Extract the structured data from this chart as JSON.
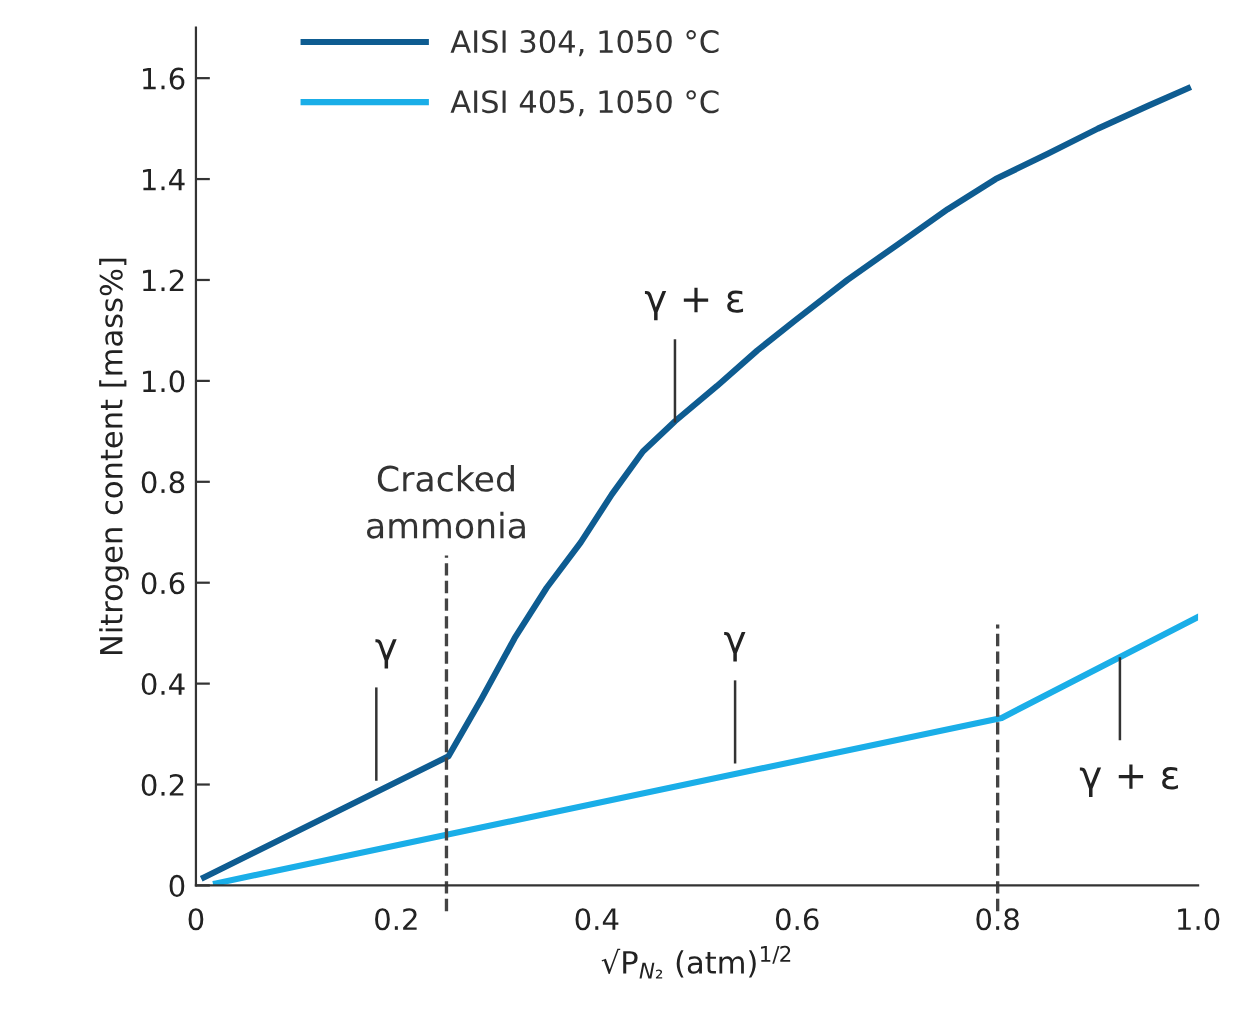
{
  "chart_data": {
    "type": "line",
    "xlabel": "√P$_{N₂}$ (atm)$^{1/2}$",
    "ylabel": "Nitrogen content [mass%]",
    "series": [
      {
        "name": "AISI 304, 1050 °C",
        "color": "#0e5c91",
        "x": [
          0.008,
          0.252,
          0.285,
          0.318,
          0.35,
          0.384,
          0.415,
          0.446,
          0.478,
          0.52,
          0.56,
          0.598,
          0.65,
          0.7,
          0.75,
          0.798,
          0.85,
          0.9,
          0.95,
          0.99
        ],
        "values": [
          0.016,
          0.256,
          0.37,
          0.49,
          0.59,
          0.68,
          0.775,
          0.86,
          0.92,
          0.99,
          1.06,
          1.12,
          1.2,
          1.27,
          1.34,
          1.4,
          1.45,
          1.5,
          1.545,
          1.58
        ]
      },
      {
        "name": "AISI 405, 1050 °C",
        "color": "#1aaee8",
        "x": [
          0.02,
          0.804,
          1.0
        ],
        "values": [
          0.004,
          0.332,
          0.532
        ]
      }
    ],
    "annotations": [
      {
        "text": "γ",
        "x": 0.18,
        "y": 0.21
      },
      {
        "text": "γ + ε",
        "x": 0.478,
        "y": 0.92
      },
      {
        "text": "γ",
        "x": 0.538,
        "y": 0.244
      },
      {
        "text": "γ + ε",
        "x": 0.922,
        "y": 0.45
      }
    ],
    "ref_lines": [
      {
        "axis": "x",
        "value": 0.25,
        "label": "Cracked\nammonia",
        "color": "#444444",
        "line_style": "dashed"
      },
      {
        "axis": "x",
        "value": 0.8,
        "color": "#444444",
        "line_style": "dashed"
      }
    ],
    "xlim": [
      0,
      1.0
    ],
    "ylim": [
      0,
      1.7
    ],
    "xticks": [
      0,
      0.2,
      0.4,
      0.6,
      0.8,
      {
        "value": 1.0,
        "label": "1.0"
      }
    ],
    "yticks": [
      0,
      0.2,
      0.4,
      0.6,
      0.8,
      {
        "value": 1.0,
        "label": "1.0"
      },
      1.2,
      1.4,
      1.6
    ],
    "grid": false,
    "legend": "top left",
    "marker": "none",
    "line_style": "solid"
  }
}
